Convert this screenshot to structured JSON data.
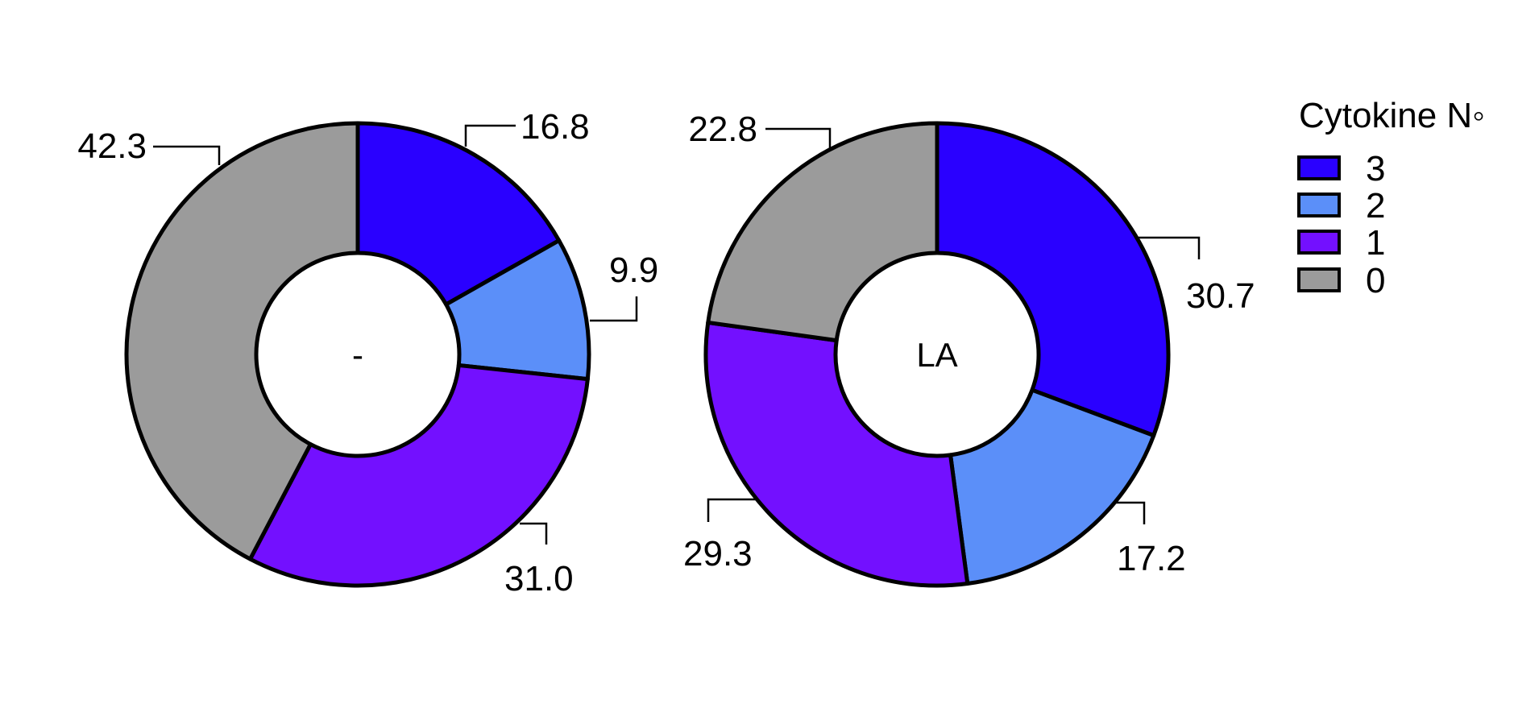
{
  "chart_data": [
    {
      "type": "pie",
      "variant": "donut",
      "center_label": "-",
      "slices": [
        {
          "category": "3",
          "value": 16.8,
          "label": "16.8"
        },
        {
          "category": "2",
          "value": 9.9,
          "label": "9.9"
        },
        {
          "category": "1",
          "value": 31.0,
          "label": "31.0"
        },
        {
          "category": "0",
          "value": 42.3,
          "label": "42.3"
        }
      ]
    },
    {
      "type": "pie",
      "variant": "donut",
      "center_label": "LA",
      "slices": [
        {
          "category": "3",
          "value": 30.7,
          "label": "30.7"
        },
        {
          "category": "2",
          "value": 17.2,
          "label": "17.2"
        },
        {
          "category": "1",
          "value": 29.3,
          "label": "29.3"
        },
        {
          "category": "0",
          "value": 22.8,
          "label": "22.8"
        }
      ]
    }
  ],
  "legend": {
    "title": "Cytokine N◦",
    "placement": "right",
    "items": [
      {
        "label": "3",
        "color": "#2a00ff"
      },
      {
        "label": "2",
        "color": "#5b8ff9"
      },
      {
        "label": "1",
        "color": "#7310ff"
      },
      {
        "label": "0",
        "color": "#9b9b9b"
      }
    ]
  },
  "colors": {
    "3": "#2a00ff",
    "2": "#5b8ff9",
    "1": "#7310ff",
    "0": "#9b9b9b",
    "outline": "#000000"
  }
}
